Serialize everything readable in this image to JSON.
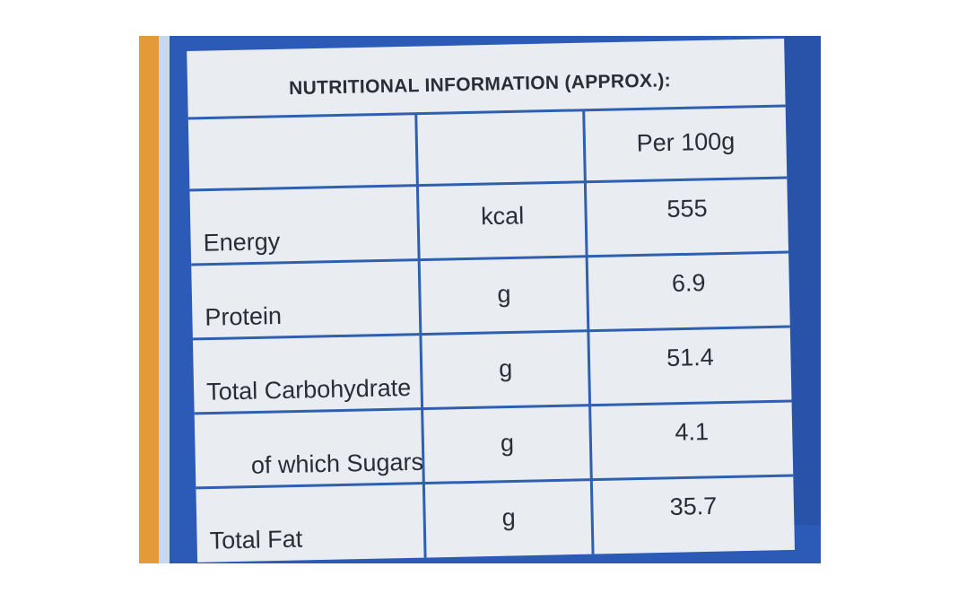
{
  "title": "NUTRITIONAL INFORMATION (APPROX.):",
  "table": {
    "header": "Per 100g",
    "rows": [
      [
        "Energy",
        "kcal",
        "555"
      ],
      [
        "Protein",
        "g",
        "6.9"
      ],
      [
        "Total Carbohydrate",
        "g",
        "51.4"
      ],
      [
        "of which Sugars",
        "g",
        "4.1"
      ],
      [
        "Total Fat",
        "g",
        "35.7"
      ]
    ]
  }
}
